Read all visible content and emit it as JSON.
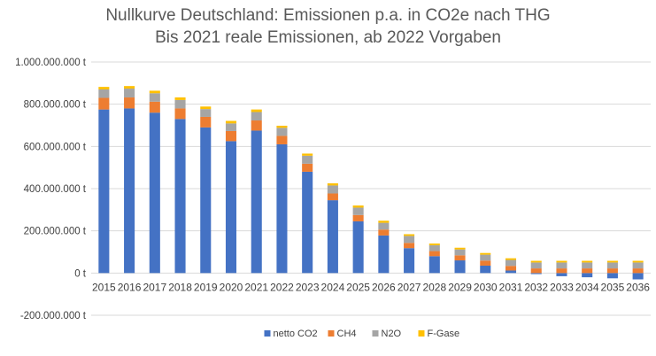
{
  "chart_data": {
    "type": "bar",
    "stacked": true,
    "title": "Nullkurve Deutschland: Emissionen p.a. in CO2e nach THG",
    "subtitle": "Bis 2021 reale Emissionen, ab 2022 Vorgaben",
    "xlabel": "",
    "ylabel": "",
    "ylim": [
      -200000000,
      1000000000
    ],
    "yticks": [
      -200000000,
      0,
      200000000,
      400000000,
      600000000,
      800000000,
      1000000000
    ],
    "ytick_labels": [
      "-200.000.000 t",
      "0 t",
      "200.000.000 t",
      "400.000.000 t",
      "600.000.000 t",
      "800.000.000 t",
      "1.000.000.000 t"
    ],
    "grid": true,
    "legend_position": "bottom",
    "categories": [
      "2015",
      "2016",
      "2017",
      "2018",
      "2019",
      "2020",
      "2021",
      "2022",
      "2023",
      "2024",
      "2025",
      "2026",
      "2027",
      "2028",
      "2029",
      "2030",
      "2031",
      "2032",
      "2033",
      "2034",
      "2035",
      "2036"
    ],
    "series": [
      {
        "name": "netto CO2",
        "color": "#4472C4",
        "values": [
          775000000,
          780000000,
          760000000,
          730000000,
          690000000,
          625000000,
          675000000,
          610000000,
          480000000,
          345000000,
          245000000,
          178000000,
          118000000,
          80000000,
          60000000,
          35000000,
          12000000,
          -5000000,
          -15000000,
          -20000000,
          -25000000,
          -30000000
        ]
      },
      {
        "name": "CH4",
        "color": "#ED7D31",
        "values": [
          55000000,
          52000000,
          52000000,
          50000000,
          50000000,
          48000000,
          48000000,
          40000000,
          38000000,
          32000000,
          30000000,
          28000000,
          25000000,
          24000000,
          24000000,
          24000000,
          22000000,
          22000000,
          22000000,
          22000000,
          22000000,
          22000000
        ]
      },
      {
        "name": "N2O",
        "color": "#A5A5A5",
        "values": [
          40000000,
          42000000,
          40000000,
          40000000,
          37000000,
          36000000,
          40000000,
          38000000,
          38000000,
          38000000,
          35000000,
          32000000,
          33000000,
          28000000,
          28000000,
          28000000,
          28000000,
          28000000,
          28000000,
          28000000,
          28000000,
          28000000
        ]
      },
      {
        "name": "F-Gase",
        "color": "#FFC000",
        "values": [
          12000000,
          12000000,
          12000000,
          12000000,
          12000000,
          12000000,
          12000000,
          10000000,
          10000000,
          10000000,
          10000000,
          10000000,
          8000000,
          8000000,
          8000000,
          8000000,
          8000000,
          8000000,
          8000000,
          8000000,
          8000000,
          8000000
        ]
      }
    ]
  }
}
